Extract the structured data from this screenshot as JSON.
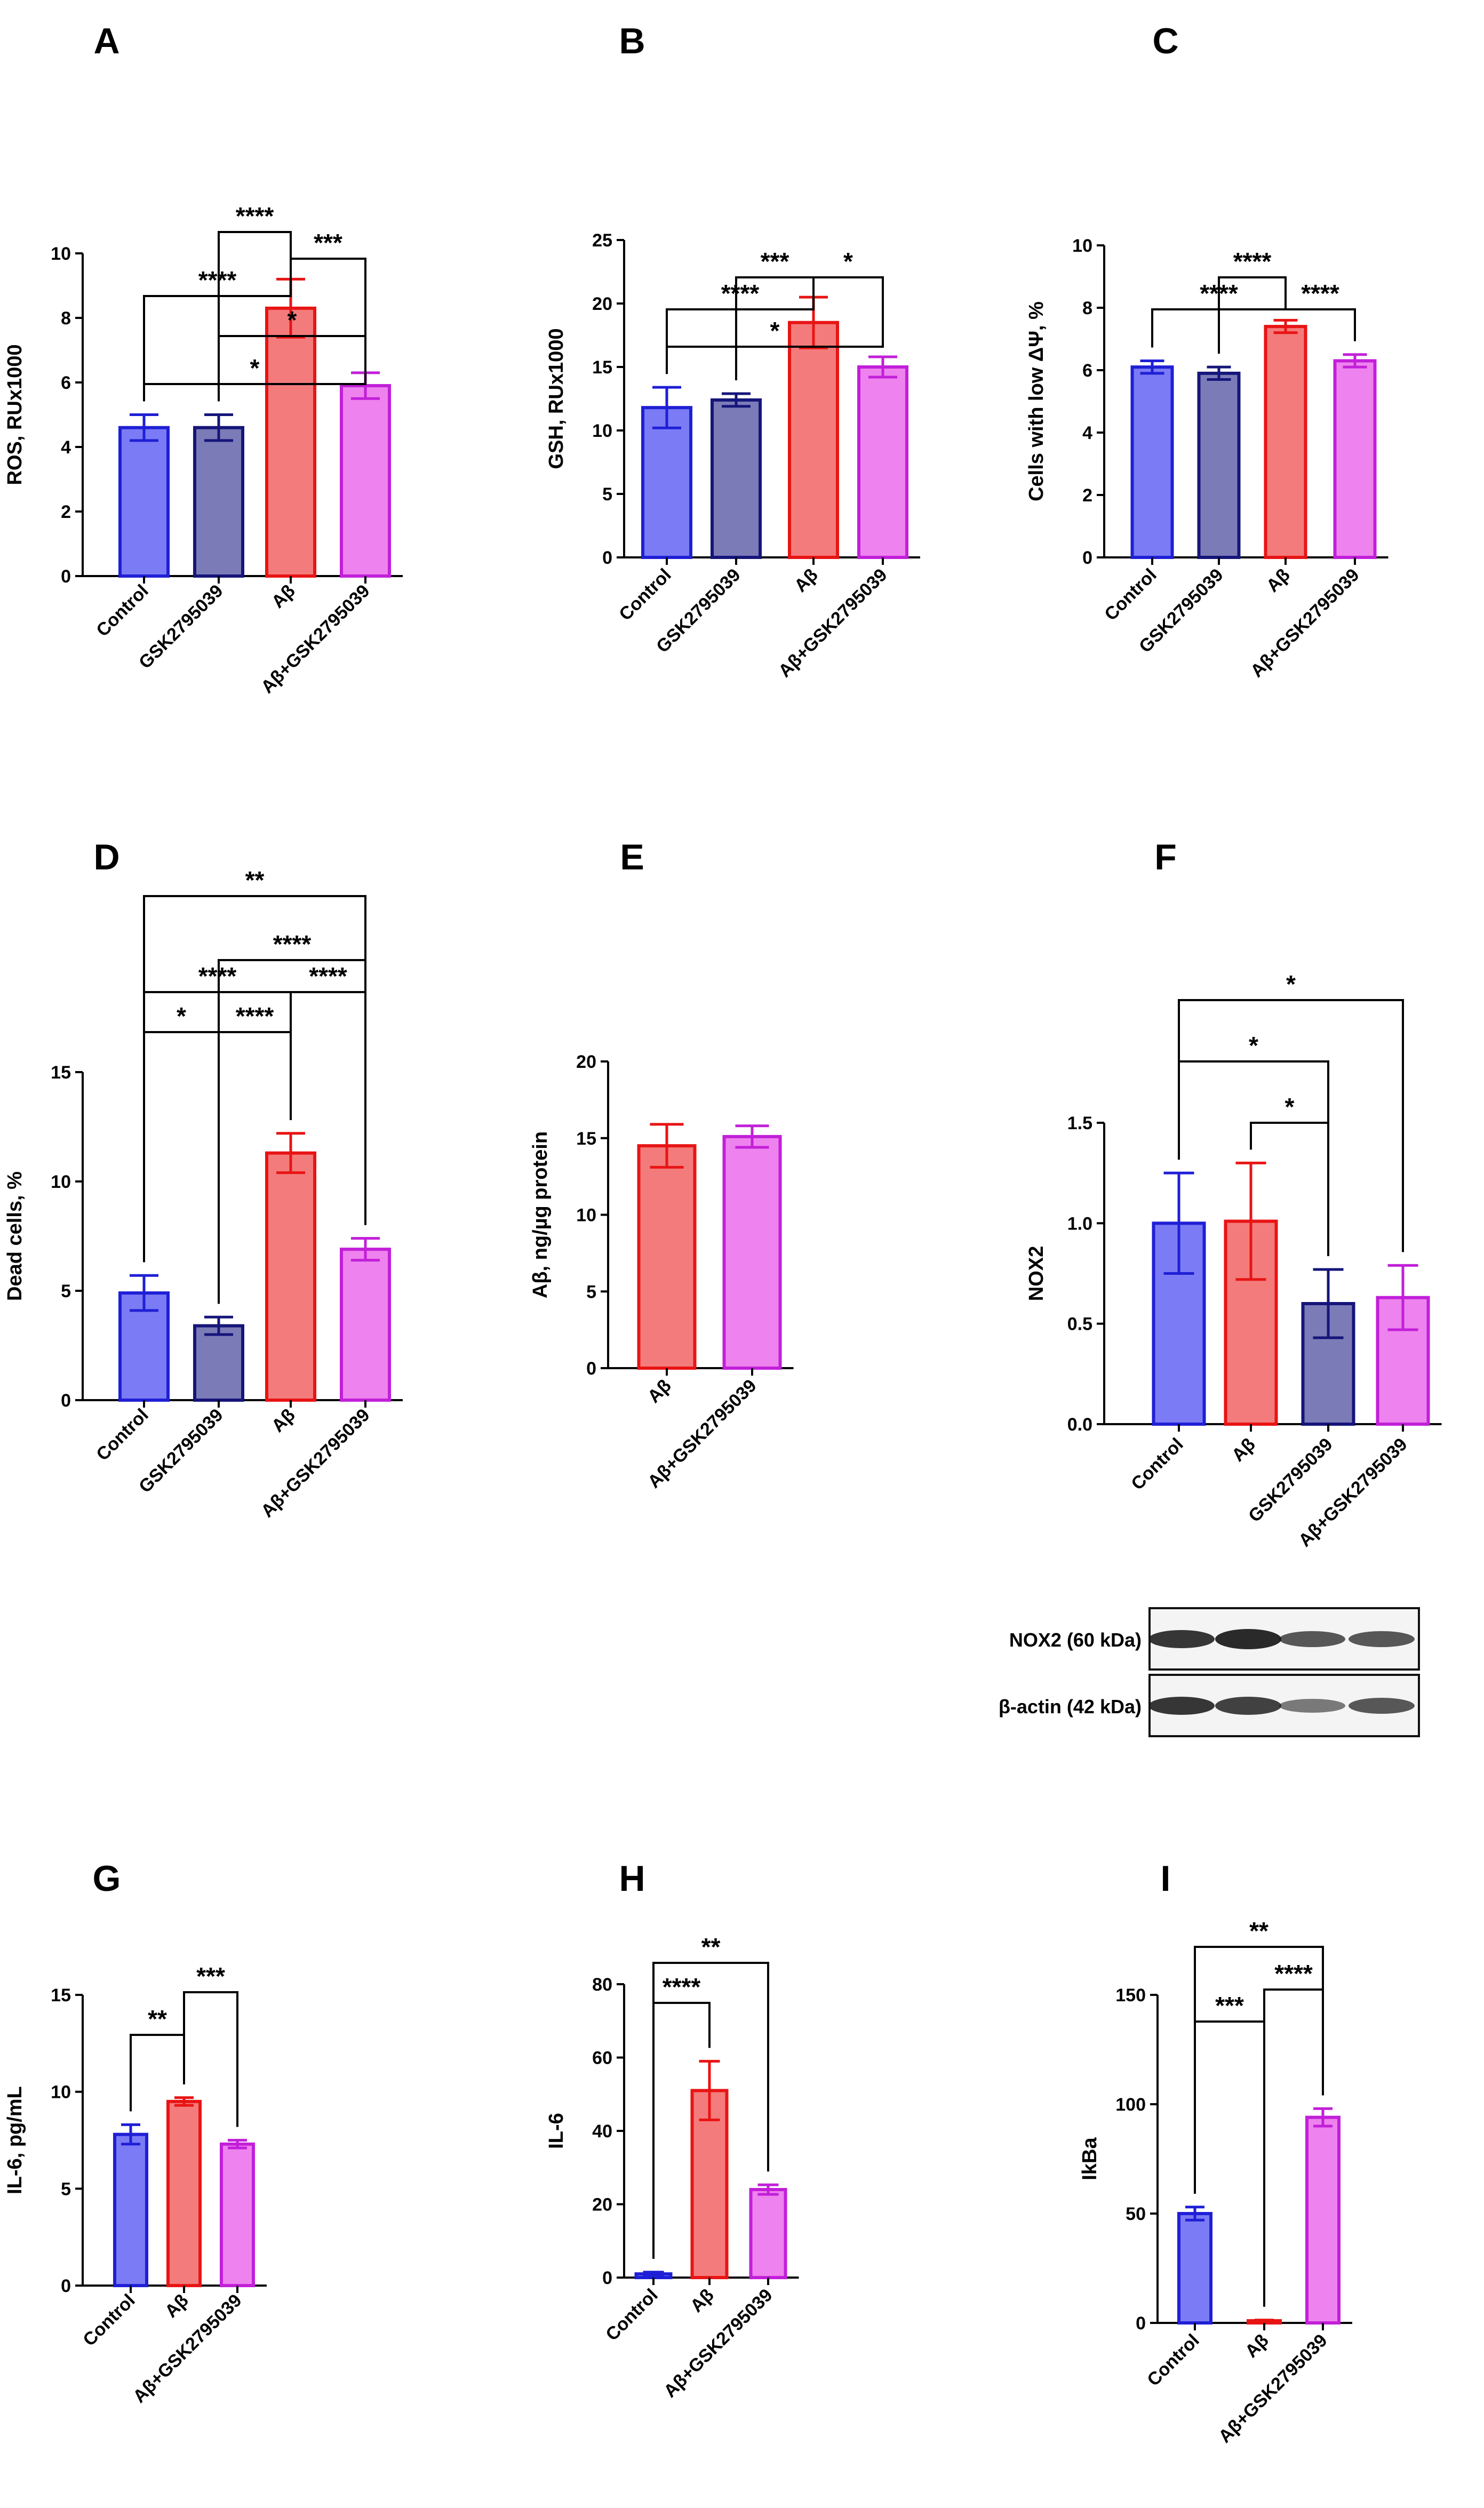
{
  "colors": {
    "Control": "#7b7bf5",
    "Control_edge": "#1f1fd6",
    "GSK2795039": "#7b7bb8",
    "GSK2795039_edge": "#15157a",
    "Abeta": "#f47b7b",
    "Abeta_edge": "#e81414",
    "AbetaGSK": "#ee82ee",
    "AbetaGSK_edge": "#c21fd9"
  },
  "chart_data": [
    {
      "panel": "A",
      "type": "bar",
      "ylabel": "ROS, RUx1000",
      "ylim": [
        0,
        10
      ],
      "yticks": [
        "0",
        "2",
        "4",
        "6",
        "8",
        "10"
      ],
      "categories": [
        "Control",
        "GSK2795039",
        "Aβ",
        "Aβ+GSK2795039"
      ],
      "keys": [
        "Control",
        "GSK2795039",
        "Abeta",
        "AbetaGSK"
      ],
      "values": [
        4.6,
        4.6,
        8.3,
        5.9
      ],
      "errors": [
        0.4,
        0.4,
        0.9,
        0.4
      ],
      "brackets": [
        {
          "a": 0,
          "b": 3,
          "label": "*"
        },
        {
          "a": 1,
          "b": 3,
          "label": "*"
        },
        {
          "a": 0,
          "b": 2,
          "label": "****"
        },
        {
          "a": 2,
          "b": 3,
          "label": "***"
        },
        {
          "a": 1,
          "b": 2,
          "label": "****"
        }
      ]
    },
    {
      "panel": "B",
      "type": "bar",
      "ylabel": "GSH, RUx1000",
      "ylim": [
        0,
        25
      ],
      "yticks": [
        "0",
        "5",
        "10",
        "15",
        "20",
        "25"
      ],
      "categories": [
        "Control",
        "GSK2795039",
        "Aβ",
        "Aβ+GSK2795039"
      ],
      "keys": [
        "Control",
        "GSK2795039",
        "Abeta",
        "AbetaGSK"
      ],
      "values": [
        11.8,
        12.4,
        18.5,
        15.0
      ],
      "errors": [
        1.6,
        0.5,
        2.0,
        0.8
      ],
      "brackets": [
        {
          "a": 0,
          "b": 3,
          "label": "*"
        },
        {
          "a": 0,
          "b": 2,
          "label": "****"
        },
        {
          "a": 1,
          "b": 2,
          "label": "***"
        },
        {
          "a": 2,
          "b": 3,
          "label": "*"
        }
      ]
    },
    {
      "panel": "C",
      "type": "bar",
      "ylabel": "Cells with low ΔΨ, %",
      "ylim": [
        0,
        10
      ],
      "yticks": [
        "0",
        "2",
        "4",
        "6",
        "8",
        "10"
      ],
      "categories": [
        "Control",
        "GSK2795039",
        "Aβ",
        "Aβ+GSK2795039"
      ],
      "keys": [
        "Control",
        "GSK2795039",
        "Abeta",
        "AbetaGSK"
      ],
      "values": [
        6.1,
        5.9,
        7.4,
        6.3
      ],
      "errors": [
        0.2,
        0.2,
        0.2,
        0.2
      ],
      "brackets": [
        {
          "a": 0,
          "b": 2,
          "label": "****"
        },
        {
          "a": 2,
          "b": 3,
          "label": "****"
        },
        {
          "a": 1,
          "b": 2,
          "label": "****"
        }
      ]
    },
    {
      "panel": "D",
      "type": "bar",
      "ylabel": "Dead cells, %",
      "ylim": [
        0,
        15
      ],
      "yticks": [
        "0",
        "5",
        "10",
        "15"
      ],
      "categories": [
        "Control",
        "GSK2795039",
        "Aβ",
        "Aβ+GSK2795039"
      ],
      "keys": [
        "Control",
        "GSK2795039",
        "Abeta",
        "AbetaGSK"
      ],
      "values": [
        4.9,
        3.4,
        11.3,
        6.9
      ],
      "errors": [
        0.8,
        0.4,
        0.9,
        0.5
      ],
      "brackets": [
        {
          "a": 0,
          "b": 3,
          "label": "**"
        },
        {
          "a": 1,
          "b": 3,
          "label": "****"
        },
        {
          "a": 0,
          "b": 2,
          "label": "****"
        },
        {
          "a": 2,
          "b": 3,
          "label": "****"
        },
        {
          "a": 0,
          "b": 1,
          "label": "*"
        },
        {
          "a": 1,
          "b": 2,
          "label": "****"
        }
      ]
    },
    {
      "panel": "E",
      "type": "bar",
      "ylabel": "Aβ, ng/µg protein",
      "ylim": [
        0,
        20
      ],
      "yticks": [
        "0",
        "5",
        "10",
        "15",
        "20"
      ],
      "categories": [
        "Aβ",
        "Aβ+GSK2795039"
      ],
      "keys": [
        "Abeta",
        "AbetaGSK"
      ],
      "values": [
        14.5,
        15.1
      ],
      "errors": [
        1.4,
        0.7
      ],
      "brackets": []
    },
    {
      "panel": "F",
      "type": "bar",
      "ylabel": "NOX2",
      "ylim": [
        0,
        1.5
      ],
      "yticks": [
        "0.0",
        "0.5",
        "1.0",
        "1.5"
      ],
      "categories": [
        "Control",
        "Aβ",
        "GSK2795039",
        "Aβ+GSK2795039"
      ],
      "keys": [
        "Control",
        "Abeta",
        "GSK2795039",
        "AbetaGSK"
      ],
      "values": [
        1.0,
        1.01,
        0.6,
        0.63
      ],
      "errors": [
        0.25,
        0.29,
        0.17,
        0.16
      ],
      "brackets": [
        {
          "a": 0,
          "b": 3,
          "label": "*"
        },
        {
          "a": 0,
          "b": 2,
          "label": "*"
        },
        {
          "a": 1,
          "b": 2,
          "label": "*"
        }
      ]
    },
    {
      "panel": "G",
      "type": "bar",
      "ylabel": "IL-6, pg/mL",
      "ylim": [
        0,
        15
      ],
      "yticks": [
        "0",
        "5",
        "10",
        "15"
      ],
      "categories": [
        "Control",
        "Aβ",
        "Aβ+GSK2795039"
      ],
      "keys": [
        "Control",
        "Abeta",
        "AbetaGSK"
      ],
      "values": [
        7.8,
        9.5,
        7.3
      ],
      "errors": [
        0.5,
        0.2,
        0.2
      ],
      "brackets": [
        {
          "a": 1,
          "b": 2,
          "label": "***"
        },
        {
          "a": 0,
          "b": 1,
          "label": "**"
        }
      ]
    },
    {
      "panel": "H",
      "type": "bar",
      "ylabel": "IL-6",
      "ylim": [
        0,
        80
      ],
      "yticks": [
        "0",
        "20",
        "40",
        "60",
        "80"
      ],
      "categories": [
        "Control",
        "Aβ",
        "Aβ+GSK2795039"
      ],
      "keys": [
        "Control",
        "Abeta",
        "AbetaGSK"
      ],
      "values": [
        1.0,
        51.0,
        24.0
      ],
      "errors": [
        0.5,
        8.0,
        1.3
      ],
      "brackets": [
        {
          "a": 0,
          "b": 2,
          "label": "**"
        },
        {
          "a": 0,
          "b": 1,
          "label": "****"
        }
      ]
    },
    {
      "panel": "I",
      "type": "bar",
      "ylabel": "IkBa",
      "ylim": [
        0,
        150
      ],
      "yticks": [
        "0",
        "50",
        "100",
        "150"
      ],
      "categories": [
        "Control",
        "Aβ",
        "Aβ+GSK2795039"
      ],
      "keys": [
        "Control",
        "Abeta",
        "AbetaGSK"
      ],
      "values": [
        50.0,
        1.0,
        94.0
      ],
      "errors": [
        3.0,
        0.3,
        4.0
      ],
      "brackets": [
        {
          "a": 0,
          "b": 2,
          "label": "**"
        },
        {
          "a": 1,
          "b": 2,
          "label": "****"
        },
        {
          "a": 0,
          "b": 1,
          "label": "***"
        }
      ]
    }
  ],
  "blot": {
    "rows": [
      "NOX2 (60 kDa)",
      "β-actin (42 kDa)"
    ]
  }
}
